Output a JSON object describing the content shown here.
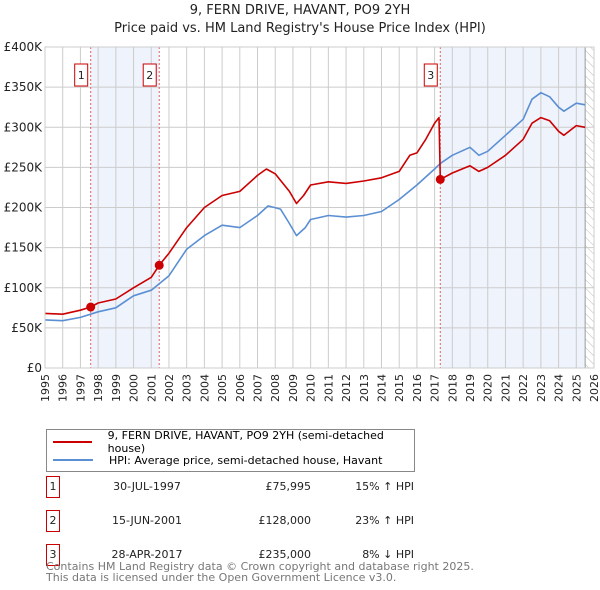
{
  "title": "9, FERN DRIVE, HAVANT, PO9 2YH",
  "subtitle": "Price paid vs. HM Land Registry's House Price Index (HPI)",
  "colors": {
    "property": "#cc0000",
    "hpi": "#5b8fd4",
    "shade": "#eef3fc"
  },
  "chart_data": {
    "type": "line",
    "title": "9, FERN DRIVE, HAVANT, PO9 2YH",
    "subtitle": "Price paid vs. HM Land Registry's House Price Index (HPI)",
    "xlim": [
      1995,
      2026
    ],
    "ylim": [
      0,
      400000
    ],
    "x_ticks": [
      1995,
      1996,
      1997,
      1998,
      1999,
      2000,
      2001,
      2002,
      2003,
      2004,
      2005,
      2006,
      2007,
      2008,
      2009,
      2010,
      2011,
      2012,
      2013,
      2014,
      2015,
      2016,
      2017,
      2018,
      2019,
      2020,
      2021,
      2022,
      2023,
      2024,
      2025,
      2026
    ],
    "y_ticks": [
      {
        "v": 0,
        "label": "£0"
      },
      {
        "v": 50000,
        "label": "£50K"
      },
      {
        "v": 100000,
        "label": "£100K"
      },
      {
        "v": 150000,
        "label": "£150K"
      },
      {
        "v": 200000,
        "label": "£200K"
      },
      {
        "v": 250000,
        "label": "£250K"
      },
      {
        "v": 300000,
        "label": "£300K"
      },
      {
        "v": 350000,
        "label": "£350K"
      },
      {
        "v": 400000,
        "label": "£400K"
      }
    ],
    "grid": true,
    "shaded_ranges": [
      [
        1997.58,
        2001.45
      ],
      [
        2017.32,
        2025.5
      ]
    ],
    "hatched_from": 2025.5,
    "series": [
      {
        "name": "9, FERN DRIVE, HAVANT, PO9 2YH (semi-detached house)",
        "color": "#cc0000",
        "x": [
          1995,
          1996,
          1997,
          1997.58,
          1998,
          1999,
          2000,
          2001,
          2001.45,
          2002,
          2003,
          2004,
          2005,
          2006,
          2007,
          2007.5,
          2008,
          2008.8,
          2009.2,
          2009.6,
          2010,
          2011,
          2012,
          2013,
          2014,
          2015,
          2015.6,
          2016,
          2016.5,
          2017,
          2017.25,
          2017.32,
          2018,
          2019,
          2019.5,
          2020,
          2021,
          2022,
          2022.5,
          2023,
          2023.5,
          2024,
          2024.3,
          2025,
          2025.5
        ],
        "y": [
          68000,
          67000,
          72000,
          75995,
          81000,
          86000,
          100000,
          113000,
          128000,
          143000,
          175000,
          200000,
          215000,
          220000,
          240000,
          248000,
          242000,
          220000,
          205000,
          215000,
          228000,
          232000,
          230000,
          233000,
          237000,
          245000,
          265000,
          268000,
          285000,
          305000,
          312000,
          235000,
          243000,
          252000,
          245000,
          250000,
          265000,
          285000,
          305000,
          312000,
          308000,
          295000,
          290000,
          302000,
          300000
        ]
      },
      {
        "name": "HPI: Average price, semi-detached house, Havant",
        "color": "#5b8fd4",
        "x": [
          1995,
          1996,
          1997,
          1998,
          1999,
          2000,
          2001,
          2002,
          2003,
          2004,
          2005,
          2006,
          2007,
          2007.6,
          2008.3,
          2008.8,
          2009.2,
          2009.7,
          2010,
          2011,
          2012,
          2013,
          2014,
          2015,
          2016,
          2017,
          2017.32,
          2018,
          2019,
          2019.5,
          2020,
          2021,
          2022,
          2022.5,
          2023,
          2023.5,
          2024,
          2024.3,
          2025,
          2025.5
        ],
        "y": [
          60000,
          59000,
          63000,
          70000,
          75000,
          90000,
          97000,
          115000,
          148000,
          165000,
          178000,
          175000,
          190000,
          202000,
          198000,
          180000,
          165000,
          175000,
          185000,
          190000,
          188000,
          190000,
          195000,
          210000,
          228000,
          248000,
          255000,
          265000,
          275000,
          265000,
          270000,
          290000,
          310000,
          335000,
          343000,
          338000,
          325000,
          320000,
          330000,
          328000
        ]
      }
    ],
    "sales": [
      {
        "id": "1",
        "x": 1997.58,
        "y": 75995
      },
      {
        "id": "2",
        "x": 2001.45,
        "y": 128000
      },
      {
        "id": "3",
        "x": 2017.32,
        "y": 235000
      }
    ]
  },
  "legend": {
    "property": "9, FERN DRIVE, HAVANT, PO9 2YH (semi-detached house)",
    "hpi": "HPI: Average price, semi-detached house, Havant"
  },
  "transactions": [
    {
      "num": "1",
      "date": "30-JUL-1997",
      "price": "£75,995",
      "hpi": "15% ↑ HPI"
    },
    {
      "num": "2",
      "date": "15-JUN-2001",
      "price": "£128,000",
      "hpi": "23% ↑ HPI"
    },
    {
      "num": "3",
      "date": "28-APR-2017",
      "price": "£235,000",
      "hpi": "8% ↓ HPI"
    }
  ],
  "footer": {
    "line1": "Contains HM Land Registry data © Crown copyright and database right 2025.",
    "line2": "This data is licensed under the Open Government Licence v3.0."
  }
}
